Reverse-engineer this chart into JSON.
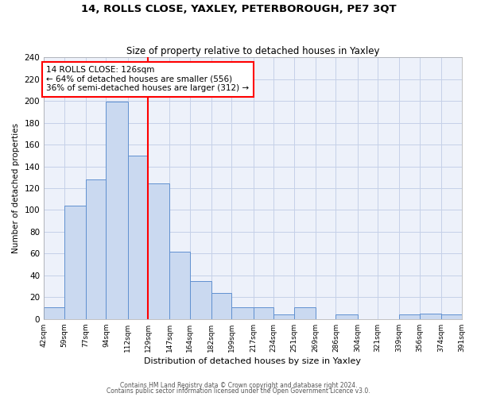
{
  "title": "14, ROLLS CLOSE, YAXLEY, PETERBOROUGH, PE7 3QT",
  "subtitle": "Size of property relative to detached houses in Yaxley",
  "xlabel": "Distribution of detached houses by size in Yaxley",
  "ylabel": "Number of detached properties",
  "bin_edges": [
    42,
    59,
    77,
    94,
    112,
    129,
    147,
    164,
    182,
    199,
    217,
    234,
    251,
    269,
    286,
    304,
    321,
    339,
    356,
    374,
    391
  ],
  "bin_labels": [
    "42sqm",
    "59sqm",
    "77sqm",
    "94sqm",
    "112sqm",
    "129sqm",
    "147sqm",
    "164sqm",
    "182sqm",
    "199sqm",
    "217sqm",
    "234sqm",
    "251sqm",
    "269sqm",
    "286sqm",
    "304sqm",
    "321sqm",
    "339sqm",
    "356sqm",
    "374sqm",
    "391sqm"
  ],
  "counts": [
    11,
    104,
    128,
    199,
    150,
    124,
    62,
    35,
    24,
    11,
    11,
    4,
    11,
    0,
    4,
    0,
    0,
    4,
    5,
    4
  ],
  "bar_facecolor": "#cad9f0",
  "bar_edgecolor": "#6090d0",
  "gridcolor": "#c5d0e8",
  "bg_color": "#edf1fa",
  "vline_x": 129,
  "vline_color": "red",
  "annotation_title": "14 ROLLS CLOSE: 126sqm",
  "annotation_line1": "← 64% of detached houses are smaller (556)",
  "annotation_line2": "36% of semi-detached houses are larger (312) →",
  "annotation_box_edgecolor": "red",
  "ylim": [
    0,
    240
  ],
  "yticks": [
    0,
    20,
    40,
    60,
    80,
    100,
    120,
    140,
    160,
    180,
    200,
    220,
    240
  ],
  "footer1": "Contains HM Land Registry data © Crown copyright and database right 2024.",
  "footer2": "Contains public sector information licensed under the Open Government Licence v3.0."
}
